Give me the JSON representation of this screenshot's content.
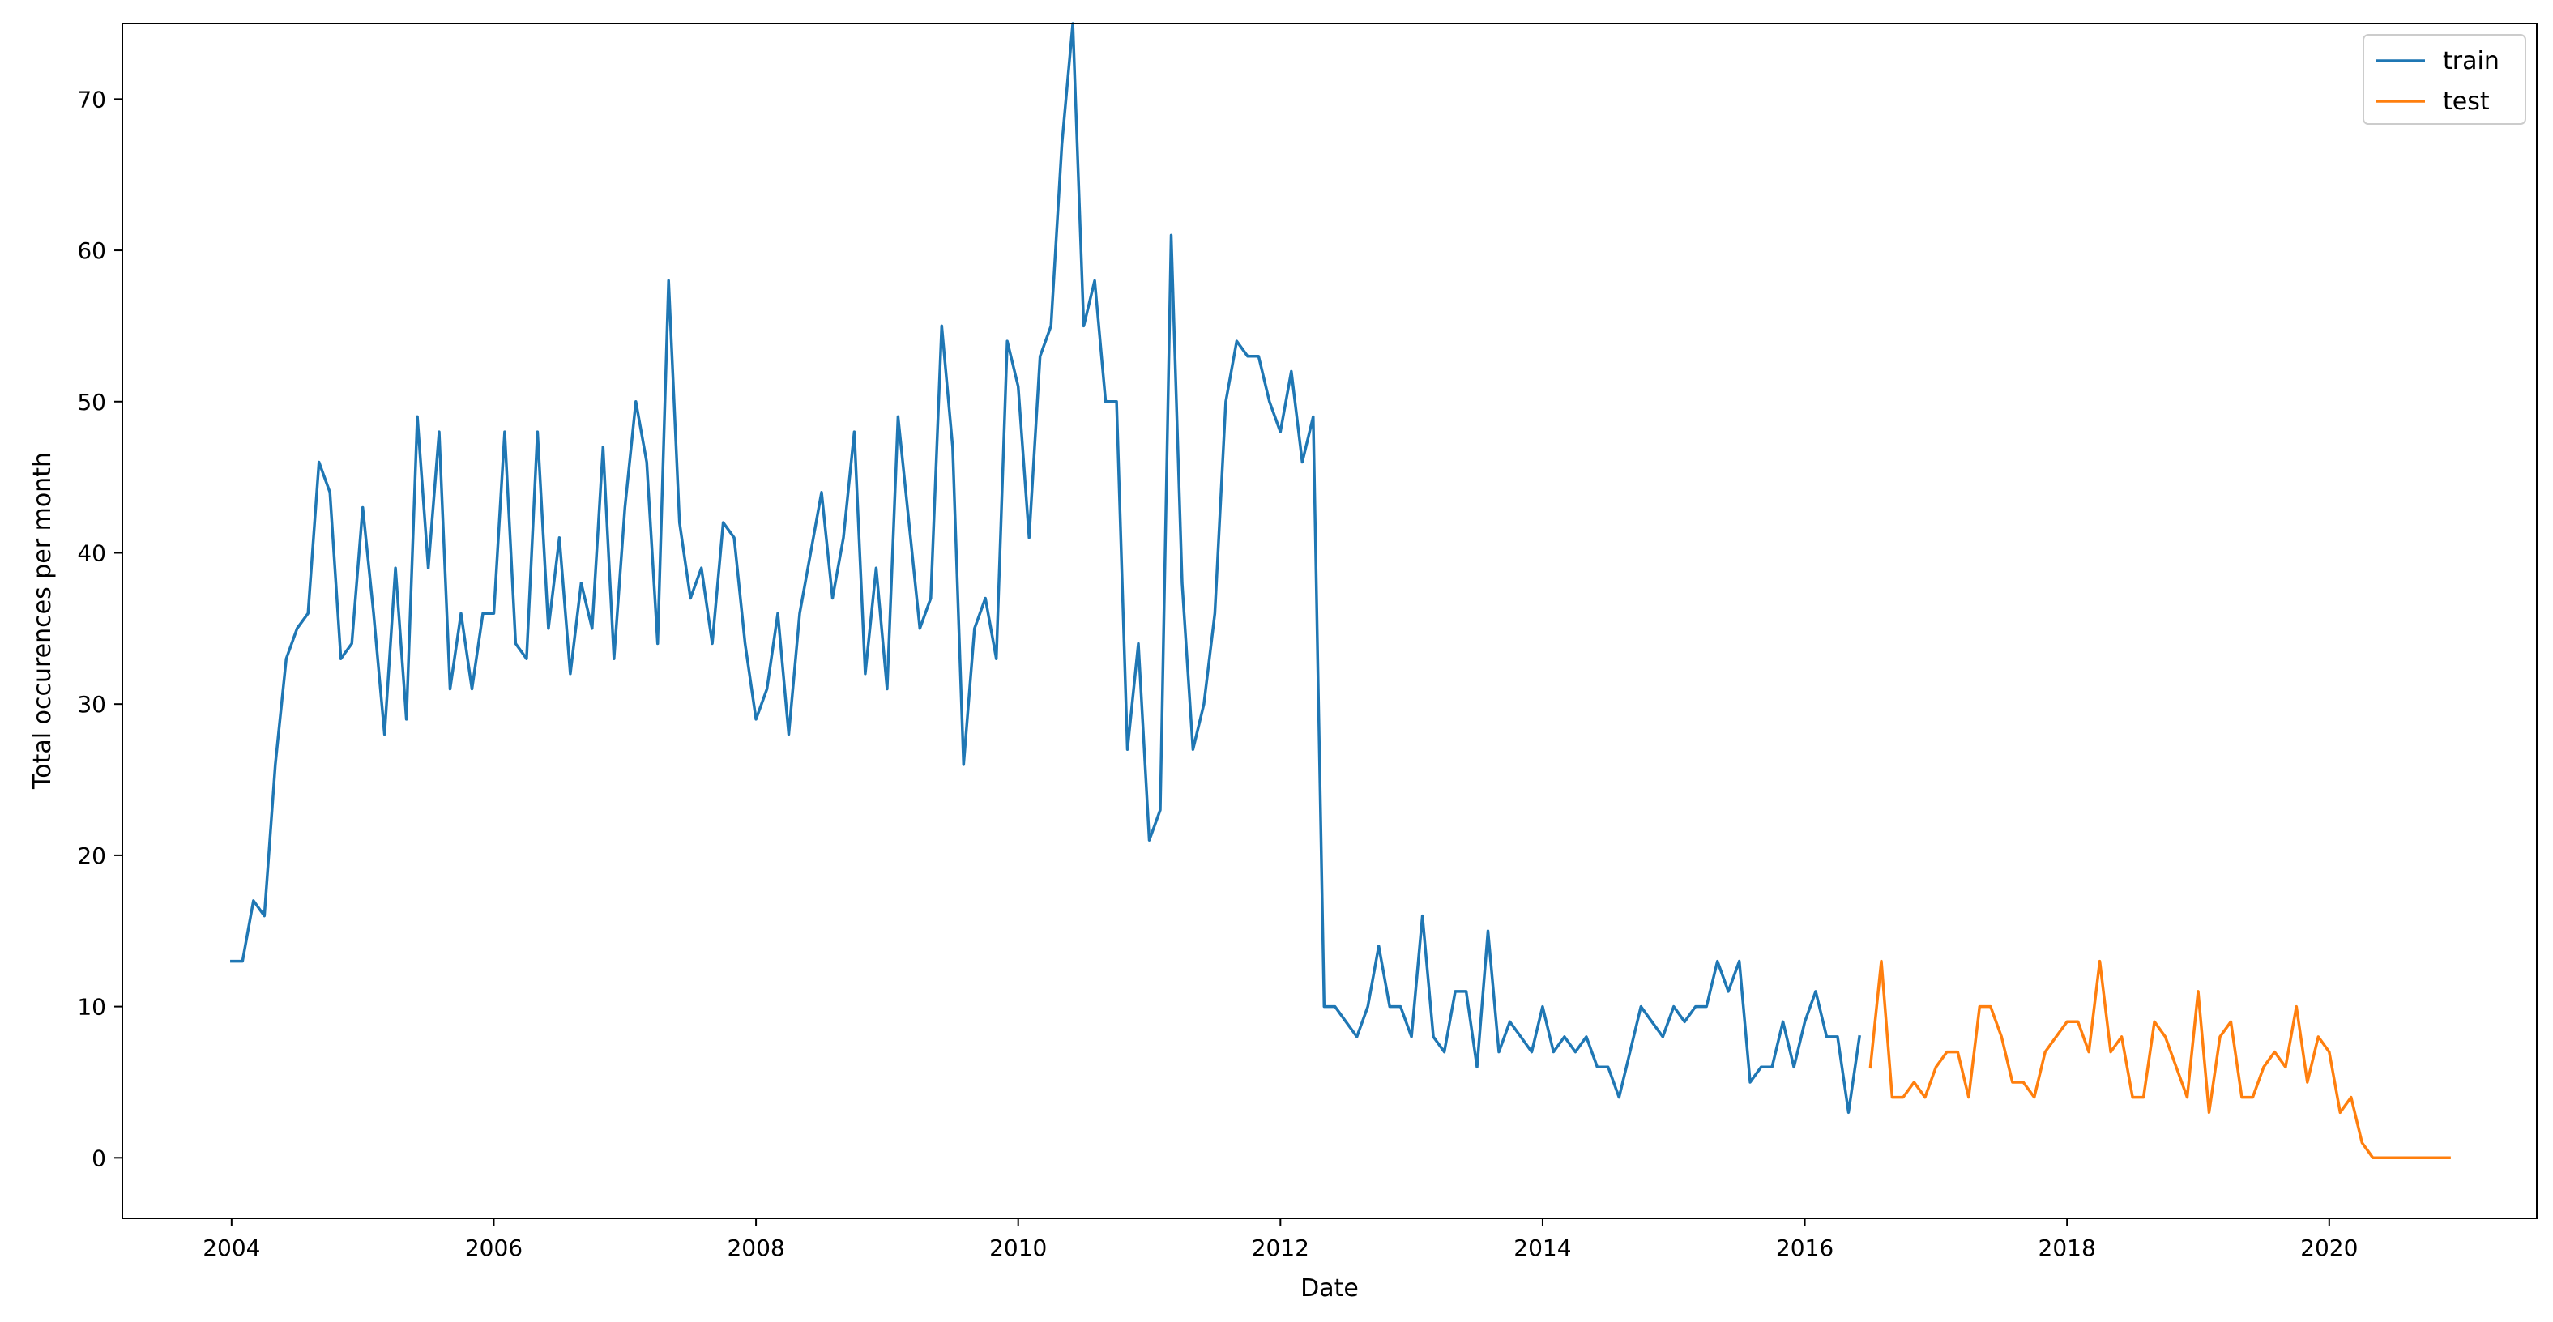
{
  "chart_data": {
    "type": "line",
    "title": "",
    "xlabel": "Date",
    "ylabel": "Total occurences per month",
    "xlim": [
      "2003-03-01",
      "2021-08-01"
    ],
    "ylim": [
      -4,
      75
    ],
    "x_ticks": [
      "2004",
      "2006",
      "2008",
      "2010",
      "2012",
      "2014",
      "2016",
      "2018",
      "2020"
    ],
    "y_ticks": [
      "0",
      "10",
      "20",
      "30",
      "40",
      "50",
      "60",
      "70"
    ],
    "grid": false,
    "legend_position": "top-right",
    "series": [
      {
        "name": "train",
        "color": "#1f77b4",
        "start": "2004-01",
        "values": [
          13,
          13,
          17,
          16,
          26,
          33,
          35,
          36,
          46,
          44,
          33,
          34,
          43,
          36,
          28,
          39,
          29,
          49,
          39,
          48,
          31,
          36,
          31,
          36,
          36,
          48,
          34,
          33,
          48,
          35,
          41,
          32,
          38,
          35,
          47,
          33,
          43,
          50,
          46,
          34,
          58,
          42,
          37,
          39,
          34,
          42,
          41,
          34,
          29,
          31,
          36,
          28,
          36,
          40,
          44,
          37,
          41,
          48,
          32,
          39,
          31,
          49,
          42,
          35,
          37,
          55,
          47,
          26,
          35,
          37,
          33,
          54,
          51,
          41,
          53,
          55,
          67,
          75,
          55,
          58,
          50,
          50,
          27,
          34,
          21,
          23,
          61,
          38,
          27,
          30,
          36,
          50,
          54,
          53,
          53,
          50,
          48,
          52,
          46,
          49,
          10,
          10,
          9,
          8,
          10,
          14,
          10,
          10,
          8,
          16,
          8,
          7,
          11,
          11,
          6,
          15,
          7,
          9,
          8,
          7,
          10,
          7,
          8,
          7,
          8,
          6,
          6,
          4,
          7,
          10,
          9,
          8,
          10,
          9,
          10,
          10,
          13,
          11,
          13,
          5,
          6,
          6,
          9,
          6,
          9,
          11,
          8,
          8,
          3,
          8
        ]
      },
      {
        "name": "test",
        "color": "#ff7f0e",
        "start": "2016-07",
        "values": [
          6,
          13,
          4,
          4,
          5,
          4,
          6,
          7,
          7,
          4,
          10,
          10,
          8,
          5,
          5,
          4,
          7,
          8,
          9,
          9,
          7,
          13,
          7,
          8,
          4,
          4,
          9,
          8,
          6,
          4,
          11,
          3,
          8,
          9,
          4,
          4,
          6,
          7,
          6,
          10,
          5,
          8,
          7,
          3,
          4,
          1,
          0,
          0,
          0,
          0,
          0,
          0,
          0,
          0
        ]
      }
    ]
  }
}
